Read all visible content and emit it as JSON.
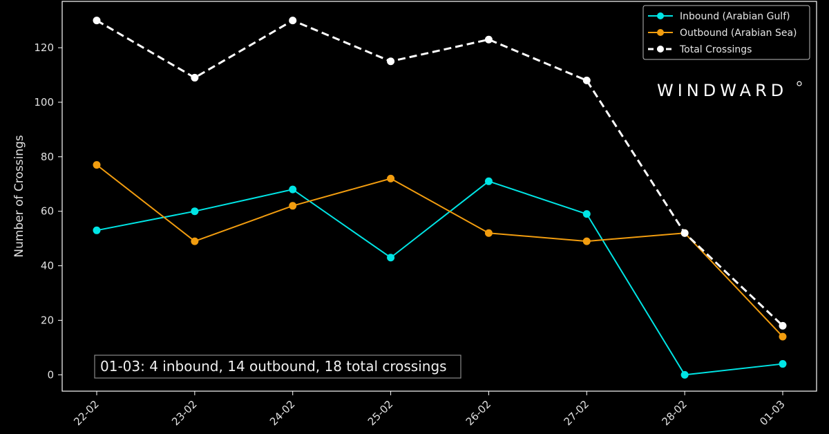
{
  "chart_data": {
    "type": "line",
    "title": "",
    "xlabel": "",
    "ylabel": "Number of Crossings",
    "categories": [
      "22-02",
      "23-02",
      "24-02",
      "25-02",
      "26-02",
      "27-02",
      "28-02",
      "01-03"
    ],
    "ylim": [
      -6,
      137
    ],
    "yticks": [
      0,
      20,
      40,
      60,
      80,
      100,
      120
    ],
    "grid": false,
    "legend_position": "top-right",
    "series": [
      {
        "name": "Inbound (Arabian Gulf)",
        "color": "#00e5e5",
        "style": "solid",
        "values": [
          53,
          60,
          68,
          43,
          71,
          59,
          0,
          4
        ]
      },
      {
        "name": "Outbound (Arabian Sea)",
        "color": "#f29d0f",
        "style": "solid",
        "values": [
          77,
          49,
          62,
          72,
          52,
          49,
          52,
          14
        ]
      },
      {
        "name": "Total Crossings",
        "color": "#ffffff",
        "style": "dashed",
        "values": [
          130,
          109,
          130,
          115,
          123,
          108,
          52,
          18
        ]
      }
    ],
    "annotation": "01-03: 4 inbound, 14 outbound, 18 total crossings",
    "brand": "WINDWARD"
  }
}
